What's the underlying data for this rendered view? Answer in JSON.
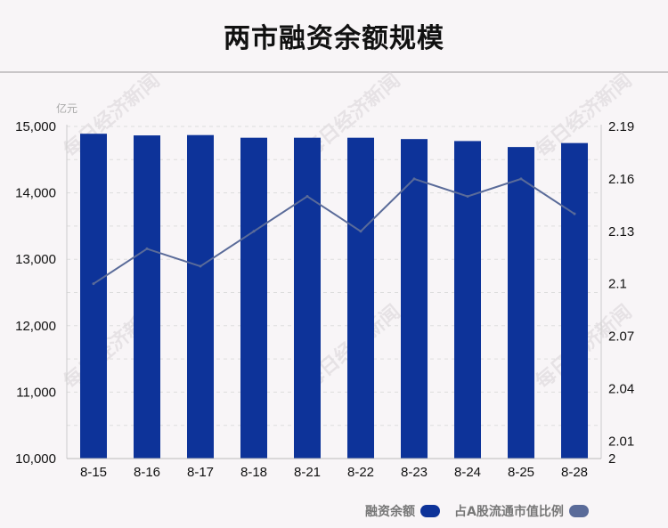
{
  "title": "两市融资余额规模",
  "chart_data": {
    "type": "bar",
    "categories": [
      "8-15",
      "8-16",
      "8-17",
      "8-18",
      "8-21",
      "8-22",
      "8-23",
      "8-24",
      "8-25",
      "8-28"
    ],
    "series": [
      {
        "name": "融资余额",
        "axis": "left",
        "type": "bar",
        "color": "#0d3399",
        "values": [
          14890,
          14865,
          14870,
          14830,
          14830,
          14830,
          14810,
          14780,
          14690,
          14750
        ]
      },
      {
        "name": "占A股流通市值比例",
        "axis": "right",
        "type": "line",
        "color": "#5a6b99",
        "values": [
          2.1,
          2.12,
          2.11,
          2.13,
          2.15,
          2.13,
          2.16,
          2.15,
          2.16,
          2.14
        ]
      }
    ],
    "left_axis": {
      "unit": "亿元",
      "ylim": [
        10000,
        15000
      ],
      "ticks": [
        "10,000",
        "11,000",
        "12,000",
        "13,000",
        "14,000",
        "15,000"
      ]
    },
    "right_axis": {
      "ylim": [
        2,
        2.19
      ],
      "ticks": [
        "2",
        "2.01",
        "2.04",
        "2.07",
        "2.1",
        "2.13",
        "2.16",
        "2.19"
      ],
      "tick_values": [
        2,
        2.01,
        2.04,
        2.07,
        2.1,
        2.13,
        2.16,
        2.19
      ]
    },
    "grid": true,
    "legend_position": "bottom-right"
  },
  "watermark": "每日经济新闻"
}
